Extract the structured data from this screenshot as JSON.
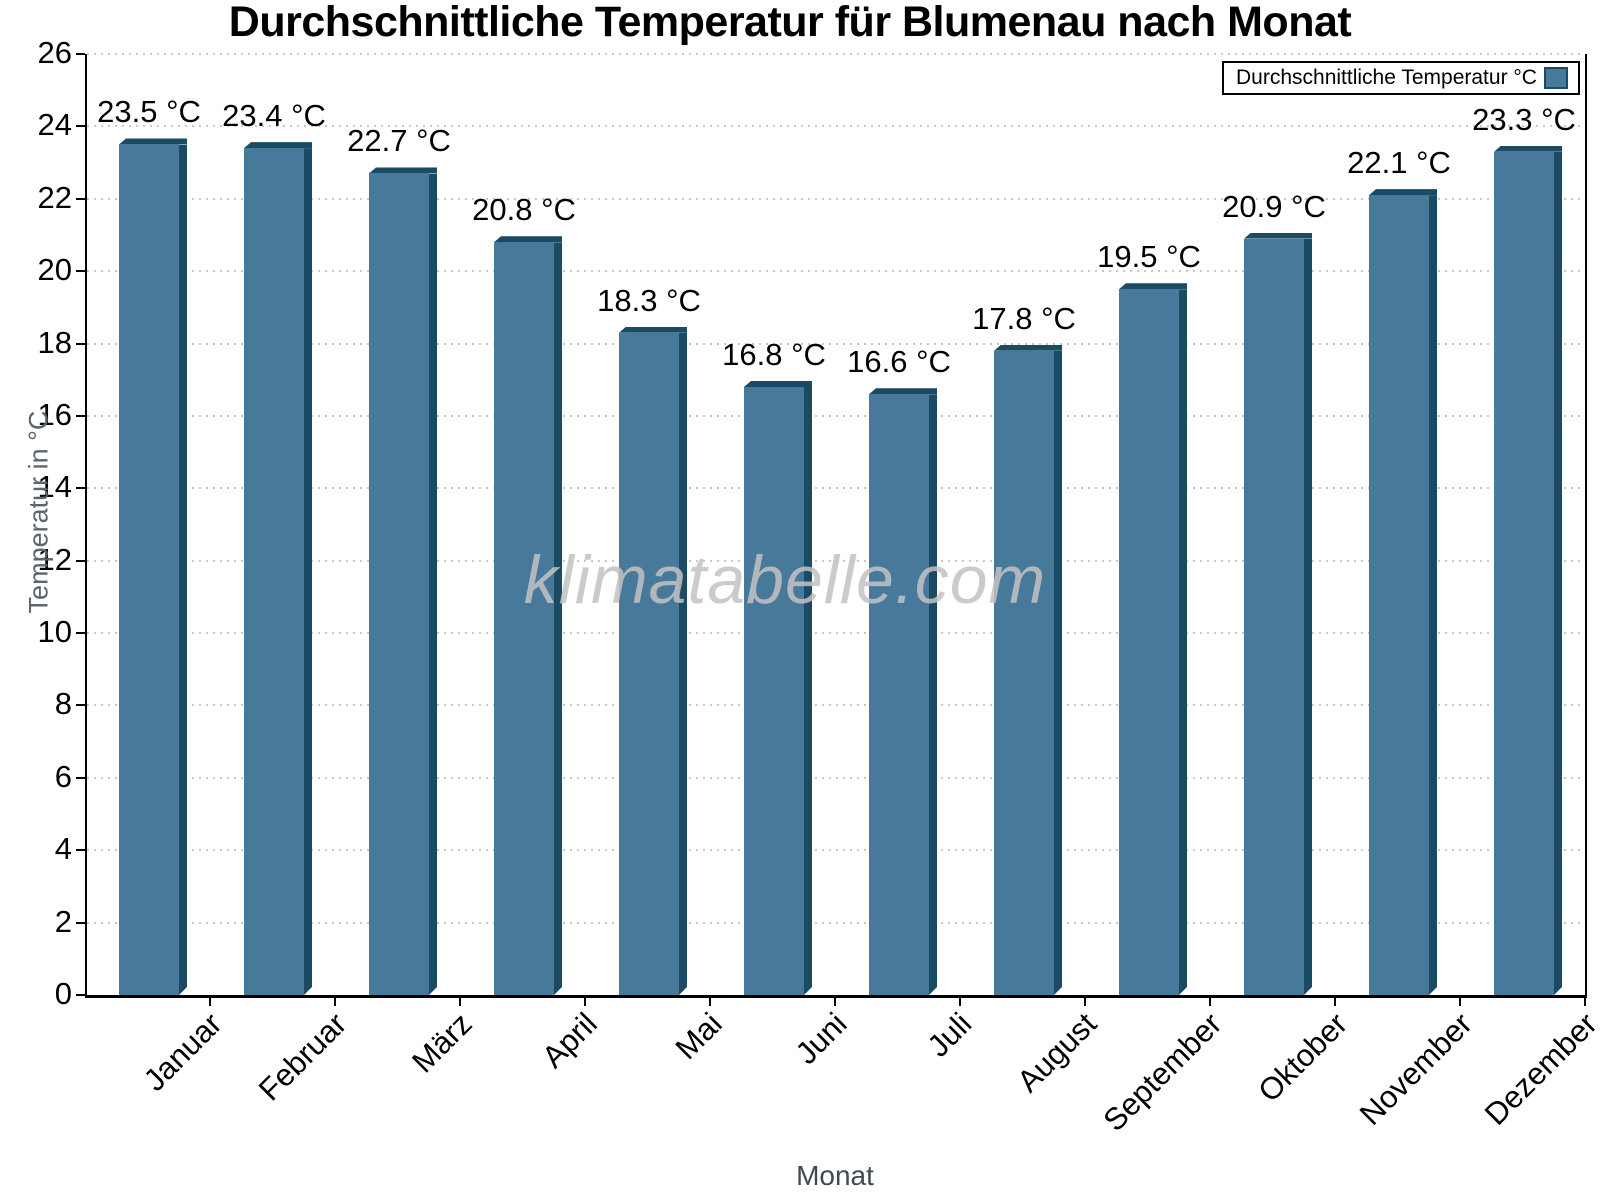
{
  "chart_data": {
    "type": "bar",
    "title": "Durchschnittliche Temperatur für Blumenau nach Monat",
    "xlabel": "Monat",
    "ylabel": "Temperatur in °C",
    "legend_label": "Durchschnittliche Temperatur °C",
    "legend_position": "top-right",
    "watermark": "klimatabelle.com",
    "categories": [
      "Januar",
      "Februar",
      "März",
      "April",
      "Mai",
      "Juni",
      "Juli",
      "August",
      "September",
      "Oktober",
      "November",
      "Dezember"
    ],
    "values": [
      23.5,
      23.4,
      22.7,
      20.8,
      18.3,
      16.8,
      16.6,
      17.8,
      19.5,
      20.9,
      22.1,
      23.3
    ],
    "value_labels": [
      "23.5 °C",
      "23.4 °C",
      "22.7 °C",
      "20.8 °C",
      "18.3 °C",
      "16.8 °C",
      "16.6 °C",
      "17.8 °C",
      "19.5 °C",
      "20.9 °C",
      "22.1 °C",
      "23.3 °C"
    ],
    "value_suffix": " °C",
    "ylim": [
      0,
      26
    ],
    "ytick_step": 2,
    "grid": "dotted-horizontal",
    "colors": {
      "bar": "#47799b",
      "bar_edge": "#1a4a64",
      "grid": "#c8c8c8",
      "axis": "#000000",
      "y_axis_title": "#5a6570",
      "x_axis_title": "#3f4953",
      "watermark": "#c3c3c3"
    }
  }
}
